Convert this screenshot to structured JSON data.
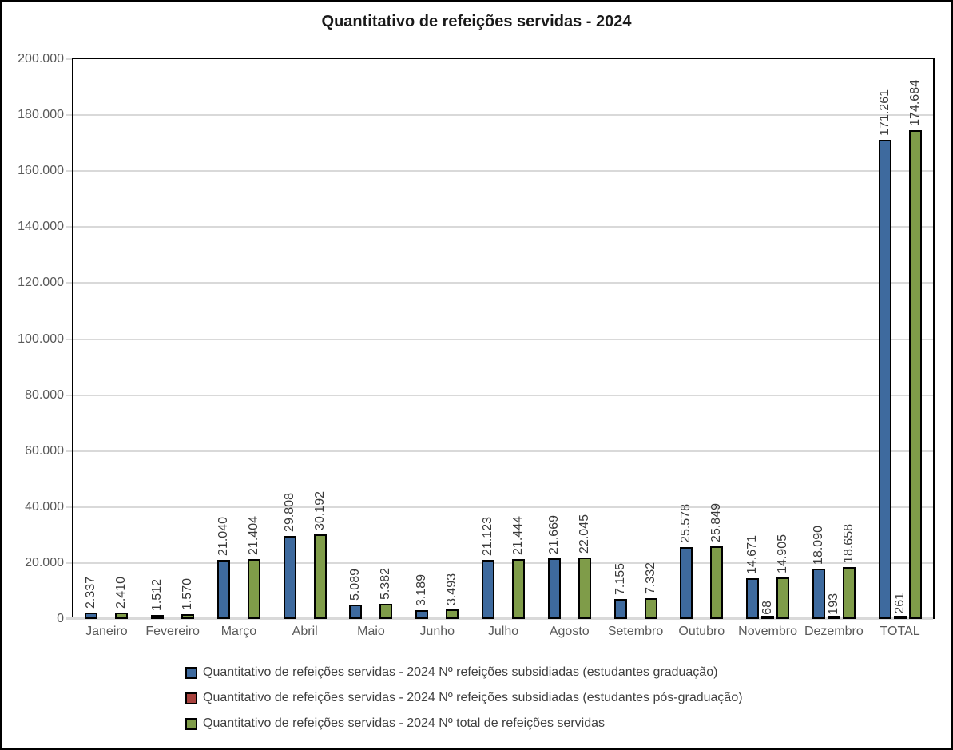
{
  "chart_data": {
    "type": "bar",
    "title": "Quantitativo de refeições servidas - 2024",
    "categories": [
      "Janeiro",
      "Fevereiro",
      "Março",
      "Abril",
      "Maio",
      "Junho",
      "Julho",
      "Agosto",
      "Setembro",
      "Outubro",
      "Novembro",
      "Dezembro",
      "TOTAL"
    ],
    "series": [
      {
        "key": "graduacao",
        "name": "Quantitativo de refeições servidas - 2024 Nº refeições subsidiadas (estudantes graduação)",
        "color": "#3e6a9e",
        "values": [
          2337,
          1512,
          21040,
          29808,
          5089,
          3189,
          21123,
          21669,
          7155,
          25578,
          14671,
          18090,
          171261
        ]
      },
      {
        "key": "pos-graduacao",
        "name": "Quantitativo de refeições servidas - 2024 Nº refeições subsidiadas (estudantes pós-graduação)",
        "color": "#a8423e",
        "values": [
          0,
          0,
          0,
          0,
          0,
          0,
          0,
          0,
          0,
          0,
          68,
          193,
          261
        ]
      },
      {
        "key": "total",
        "name": "Quantitativo de refeições servidas - 2024 Nº total de refeições servidas",
        "color": "#7f9c49",
        "values": [
          2410,
          1570,
          21404,
          30192,
          5382,
          3493,
          21444,
          22045,
          7332,
          25849,
          14905,
          18658,
          174684
        ]
      }
    ],
    "ylim": [
      0,
      200000
    ],
    "y_step": 20000,
    "y_tick_labels": [
      "0",
      "20.000",
      "40.000",
      "60.000",
      "80.000",
      "100.000",
      "120.000",
      "140.000",
      "160.000",
      "180.000",
      "200.000"
    ],
    "grid": true,
    "legend_position": "bottom-left",
    "number_format": "thousands-dot",
    "colors": {
      "bar_border": "#000000",
      "gridline": "#d9d9d9",
      "axis_text": "#595959",
      "value_label_text": "#3a3a3a",
      "legend_text": "#404040",
      "plot_border": "#000000"
    }
  }
}
